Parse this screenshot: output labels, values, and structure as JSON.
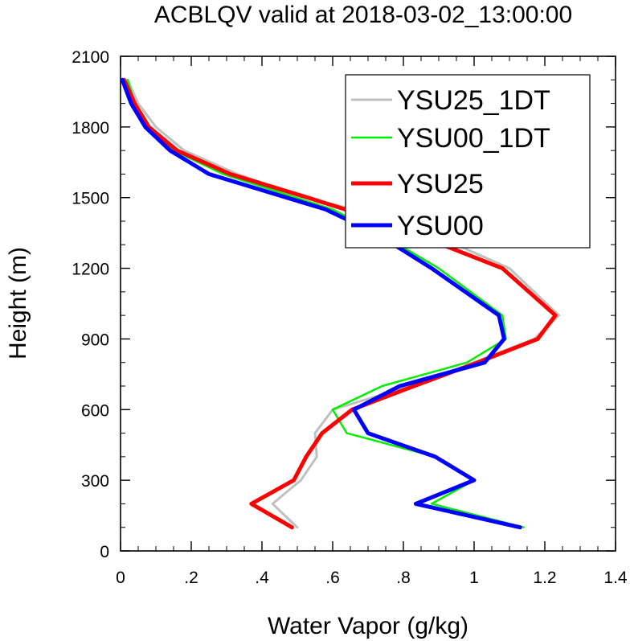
{
  "chart_data": {
    "type": "line",
    "title": "ACBLQV valid at 2018-03-02_13:00:00",
    "xlabel": "Water Vapor (g/kg)",
    "ylabel": "Height (m)",
    "xlim": [
      0,
      1.4
    ],
    "ylim": [
      0,
      2100
    ],
    "x_ticks": [
      0,
      0.2,
      0.4,
      0.6,
      0.8,
      1.0,
      1.2,
      1.4
    ],
    "x_tick_labels": [
      "0",
      ".2",
      ".4",
      ".6",
      ".8",
      "1",
      "1.2",
      "1.4"
    ],
    "y_ticks": [
      0,
      300,
      600,
      900,
      1200,
      1500,
      1800,
      2100
    ],
    "y_tick_labels": [
      "0",
      "300",
      "600",
      "900",
      "1200",
      "1500",
      "1800",
      "2100"
    ],
    "grid": false,
    "legend_position": "top-right",
    "series": [
      {
        "name": "YSU25_1DT",
        "color": "#c0c0c0",
        "points": [
          [
            0.5,
            100
          ],
          [
            0.43,
            200
          ],
          [
            0.51,
            300
          ],
          [
            0.555,
            400
          ],
          [
            0.55,
            500
          ],
          [
            0.6,
            600
          ],
          [
            0.82,
            700
          ],
          [
            1.0,
            800
          ],
          [
            1.17,
            900
          ],
          [
            1.24,
            1000
          ],
          [
            1.1,
            1200
          ],
          [
            0.8,
            1400
          ],
          [
            0.52,
            1500
          ],
          [
            0.33,
            1600
          ],
          [
            0.18,
            1700
          ],
          [
            0.1,
            1800
          ],
          [
            0.05,
            1900
          ],
          [
            0.02,
            2000
          ]
        ]
      },
      {
        "name": "YSU00_1DT",
        "color": "#00ee00",
        "points": [
          [
            1.14,
            100
          ],
          [
            0.88,
            200
          ],
          [
            1.0,
            300
          ],
          [
            0.89,
            400
          ],
          [
            0.64,
            500
          ],
          [
            0.6,
            600
          ],
          [
            0.74,
            700
          ],
          [
            0.98,
            800
          ],
          [
            1.09,
            900
          ],
          [
            1.08,
            1000
          ],
          [
            0.9,
            1200
          ],
          [
            0.73,
            1350
          ],
          [
            0.6,
            1450
          ],
          [
            0.29,
            1600
          ],
          [
            0.15,
            1700
          ],
          [
            0.08,
            1800
          ],
          [
            0.04,
            1900
          ],
          [
            0.02,
            2000
          ]
        ]
      },
      {
        "name": "YSU25",
        "color": "#ff0000",
        "points": [
          [
            0.485,
            100
          ],
          [
            0.37,
            200
          ],
          [
            0.49,
            300
          ],
          [
            0.525,
            400
          ],
          [
            0.57,
            500
          ],
          [
            0.655,
            600
          ],
          [
            0.83,
            700
          ],
          [
            1.01,
            800
          ],
          [
            1.18,
            900
          ],
          [
            1.23,
            1000
          ],
          [
            1.08,
            1200
          ],
          [
            0.74,
            1400
          ],
          [
            0.53,
            1500
          ],
          [
            0.31,
            1600
          ],
          [
            0.16,
            1700
          ],
          [
            0.08,
            1800
          ],
          [
            0.04,
            1900
          ],
          [
            0.01,
            2000
          ]
        ]
      },
      {
        "name": "YSU00",
        "color": "#0000ff",
        "points": [
          [
            1.13,
            100
          ],
          [
            0.835,
            200
          ],
          [
            1.0,
            300
          ],
          [
            0.89,
            400
          ],
          [
            0.7,
            500
          ],
          [
            0.66,
            600
          ],
          [
            0.79,
            700
          ],
          [
            1.03,
            800
          ],
          [
            1.085,
            900
          ],
          [
            1.07,
            1000
          ],
          [
            0.88,
            1200
          ],
          [
            0.72,
            1350
          ],
          [
            0.58,
            1450
          ],
          [
            0.25,
            1600
          ],
          [
            0.14,
            1700
          ],
          [
            0.07,
            1800
          ],
          [
            0.03,
            1900
          ],
          [
            0.005,
            2000
          ]
        ]
      }
    ]
  }
}
